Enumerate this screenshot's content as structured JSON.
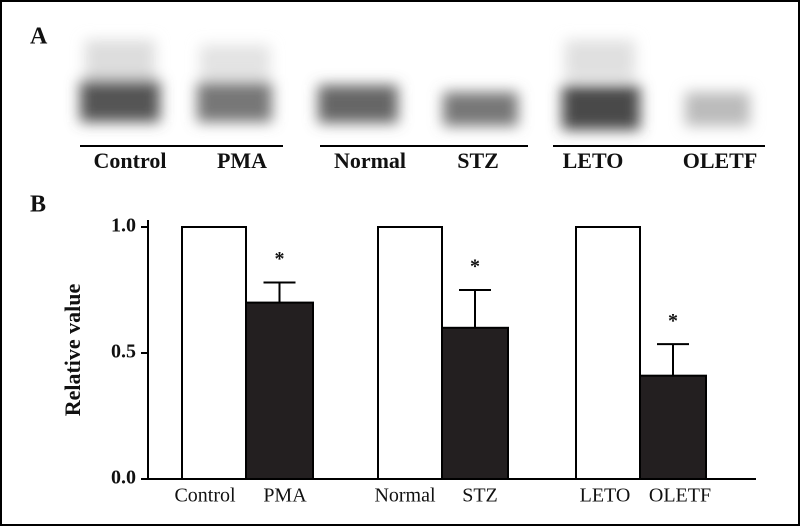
{
  "panel_a": {
    "label": "A",
    "lanes": [
      "Control",
      "PMA",
      "Normal",
      "STZ",
      "LETO",
      "OLETF"
    ]
  },
  "chart_data": {
    "type": "bar",
    "panel_label": "B",
    "ylabel": "Relative value",
    "categories": [
      "Control",
      "PMA",
      "Normal",
      "STZ",
      "LETO",
      "OLETF"
    ],
    "values": [
      1.0,
      0.7,
      1.0,
      0.6,
      1.0,
      0.41
    ],
    "errors": [
      null,
      0.08,
      null,
      0.15,
      null,
      0.125
    ],
    "annotations": [
      null,
      "*",
      null,
      "*",
      null,
      "*"
    ],
    "colors": [
      "#ffffff",
      "#231f20",
      "#ffffff",
      "#231f20",
      "#ffffff",
      "#231f20"
    ],
    "ylim": [
      0,
      1.03
    ],
    "yticks": [
      {
        "value": 0,
        "label": "0.0"
      },
      {
        "value": 0.5,
        "label": "0.5"
      },
      {
        "value": 1,
        "label": "1.0"
      }
    ]
  }
}
